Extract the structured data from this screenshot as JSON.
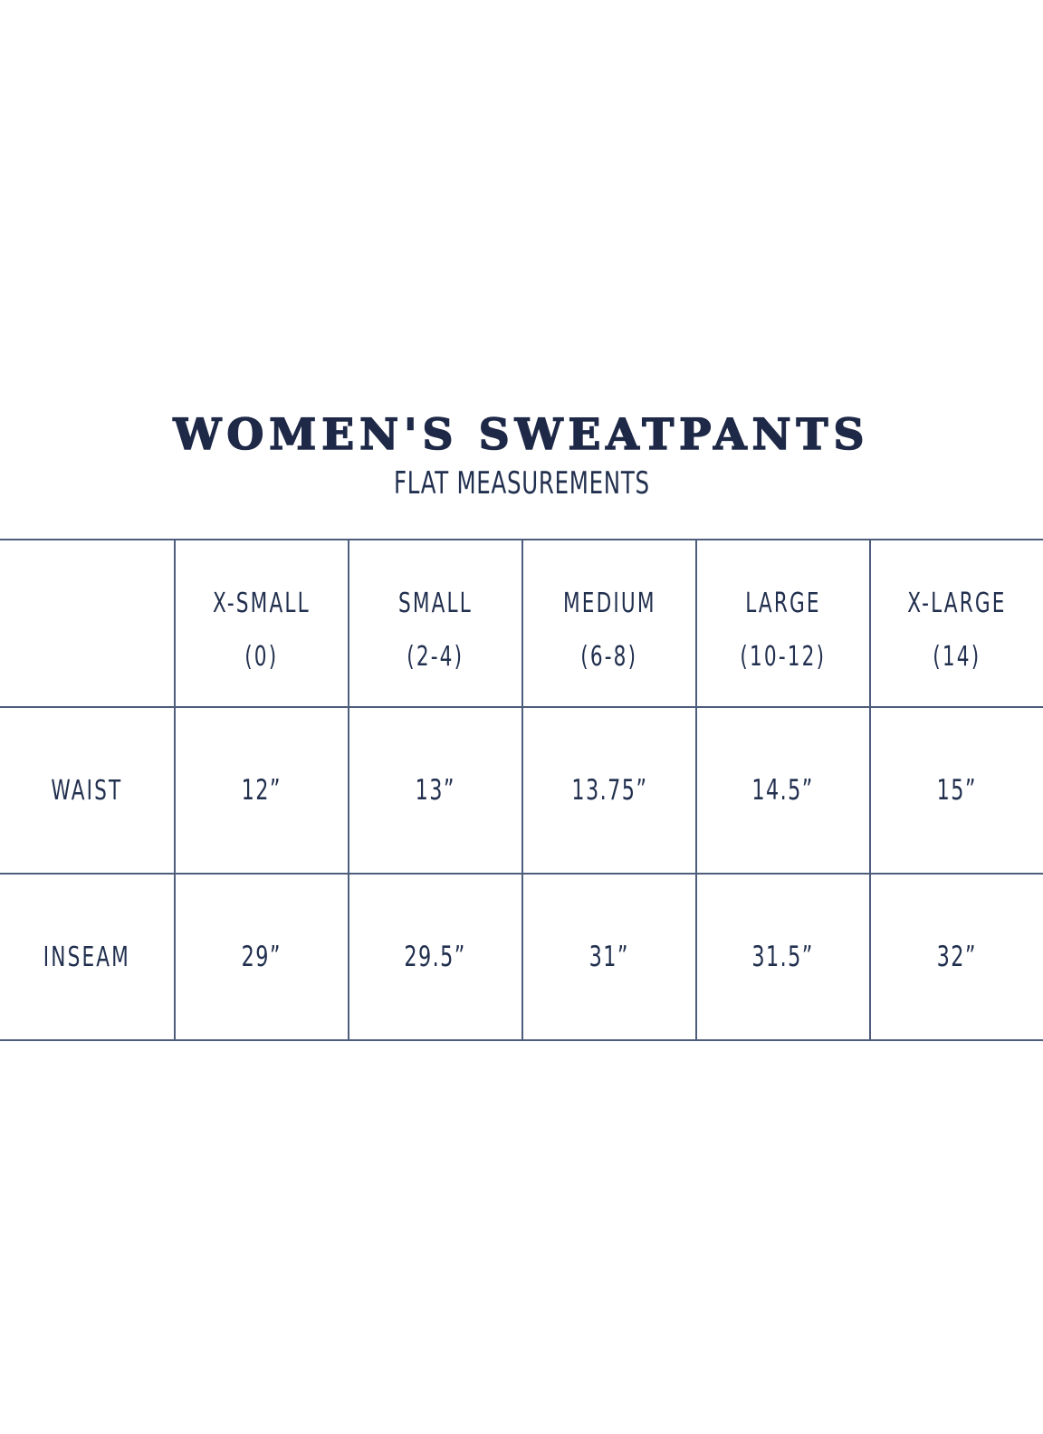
{
  "title": "WOMEN'S SWEATPANTS",
  "subtitle": "FLAT MEASUREMENTS",
  "colors": {
    "ink": "#1f2b4e",
    "grid_line": "#4e5d7c",
    "background": "#ffffff"
  },
  "chart_data": {
    "type": "table",
    "title": "WOMEN'S SWEATPANTS",
    "subtitle": "FLAT MEASUREMENTS",
    "columns": [
      {
        "name": "X-SMALL",
        "range": "(0)"
      },
      {
        "name": "SMALL",
        "range": "(2-4)"
      },
      {
        "name": "MEDIUM",
        "range": "(6-8)"
      },
      {
        "name": "LARGE",
        "range": "(10-12)"
      },
      {
        "name": "X-LARGE",
        "range": "(14)"
      }
    ],
    "rows": [
      {
        "label": "WAIST",
        "values": [
          "12”",
          "13”",
          "13.75”",
          "14.5”",
          "15”"
        ]
      },
      {
        "label": "INSEAM",
        "values": [
          "29”",
          "29.5”",
          "31”",
          "31.5”",
          "32”"
        ]
      }
    ],
    "units": "inches"
  }
}
